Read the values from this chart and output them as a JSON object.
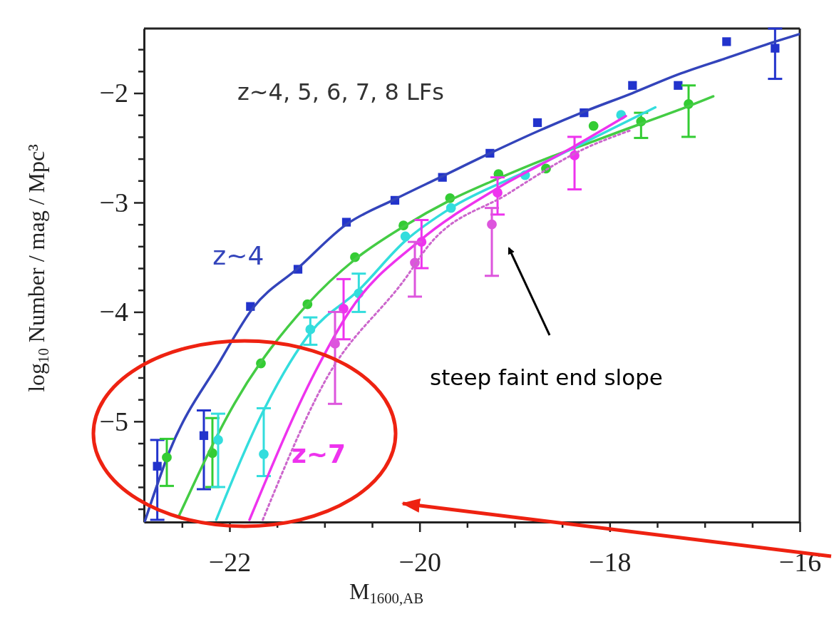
{
  "chart_data": {
    "type": "scatter",
    "xlabel": "M$_{1600,AB}$",
    "ylabel": "log$_{10}$ Number / mag / Mpc³",
    "xlim": [
      -22.9,
      -16
    ],
    "ylim": [
      -5.92,
      -1.41
    ],
    "xticks": [
      {
        "value": -22.5,
        "label": null
      },
      -22,
      {
        "value": -21.5,
        "label": null
      },
      {
        "value": -21,
        "label": null
      },
      {
        "value": -20.5,
        "label": null
      },
      -20,
      {
        "value": -19.5,
        "label": null
      },
      {
        "value": -19,
        "label": null
      },
      {
        "value": -18.5,
        "label": null
      },
      -18,
      {
        "value": -17.5,
        "label": null
      },
      {
        "value": -17,
        "label": null
      },
      {
        "value": -16.5,
        "label": null
      },
      -16
    ],
    "yticks": [
      {
        "value": -5.8,
        "label": null
      },
      {
        "value": -5.6,
        "label": null
      },
      {
        "value": -5.4,
        "label": null
      },
      {
        "value": -5.2,
        "label": null
      },
      -5,
      {
        "value": -4.8,
        "label": null
      },
      {
        "value": -4.6,
        "label": null
      },
      {
        "value": -4.4,
        "label": null
      },
      {
        "value": -4.2,
        "label": null
      },
      -4,
      {
        "value": -3.8,
        "label": null
      },
      {
        "value": -3.6,
        "label": null
      },
      {
        "value": -3.4,
        "label": null
      },
      {
        "value": -3.2,
        "label": null
      },
      -3,
      {
        "value": -2.8,
        "label": null
      },
      {
        "value": -2.6,
        "label": null
      },
      {
        "value": -2.4,
        "label": null
      },
      {
        "value": -2.2,
        "label": null
      },
      -2,
      {
        "value": -1.8,
        "label": null
      },
      {
        "value": -1.6,
        "label": null
      }
    ],
    "annotations": [
      "z~4, 5, 6, 7, 8 LFs",
      "steep faint end slope"
    ],
    "series": [
      {
        "type": "scatter",
        "color": "#2233cc",
        "marker": "square",
        "x": [
          -22.76,
          -22.27,
          -21.78,
          -21.28,
          -20.77,
          -20.26,
          -19.76,
          -19.26,
          -18.76,
          -18.27,
          -17.76,
          -17.28,
          -16.77,
          -16.26
        ],
        "values": [
          -5.41,
          -5.13,
          -3.95,
          -3.61,
          -3.18,
          -2.98,
          -2.77,
          -2.55,
          -2.27,
          -2.18,
          -1.93,
          -1.93,
          -1.53,
          -1.59
        ],
        "errors": [
          [
            -5.9,
            -5.17
          ],
          [
            -5.62,
            -4.9
          ],
          null,
          null,
          null,
          null,
          null,
          null,
          null,
          null,
          null,
          null,
          null,
          [
            -1.87,
            -1.41
          ]
        ]
      },
      {
        "type": "line",
        "name": "z~4",
        "color": "#3344bb",
        "line_style": "solid",
        "x": [
          -22.89,
          -22.63,
          -22.1,
          -21.75,
          -21.28,
          -20.77,
          -20.26,
          -19.76,
          -19.26,
          -18.76,
          -18.27,
          -17.76,
          -17.28,
          -16.77,
          -16.26,
          -16
        ],
        "values": [
          -5.91,
          -5.27,
          -4.45,
          -3.96,
          -3.6,
          -3.2,
          -2.97,
          -2.76,
          -2.55,
          -2.35,
          -2.17,
          -2.0,
          -1.83,
          -1.68,
          -1.53,
          -1.46
        ]
      },
      {
        "type": "scatter",
        "color": "#33cc33",
        "marker": "circle",
        "x": [
          -22.66,
          -22.18,
          -21.67,
          -21.18,
          -20.68,
          -20.17,
          -19.68,
          -19.17,
          -18.67,
          -18.17,
          -17.67,
          -17.17
        ],
        "values": [
          -5.33,
          -5.29,
          -4.47,
          -3.93,
          -3.5,
          -3.21,
          -2.96,
          -2.74,
          -2.69,
          -2.3,
          -2.26,
          -2.1
        ],
        "errors": [
          [
            -5.59,
            -5.16
          ],
          [
            -5.6,
            -4.97
          ],
          null,
          null,
          null,
          null,
          null,
          null,
          null,
          null,
          [
            -2.41,
            -2.18
          ],
          [
            -2.4,
            -1.93
          ]
        ]
      },
      {
        "type": "line",
        "color": "#44cc44",
        "line_style": "solid",
        "x": [
          -22.53,
          -21.95,
          -21.18,
          -20.68,
          -20.17,
          -19.68,
          -19.17,
          -18.67,
          -18.17,
          -17.67,
          -17.17,
          -16.91
        ],
        "values": [
          -5.86,
          -4.84,
          -3.93,
          -3.52,
          -3.22,
          -2.98,
          -2.78,
          -2.6,
          -2.44,
          -2.28,
          -2.12,
          -2.03
        ]
      },
      {
        "type": "scatter",
        "color": "#33dddd",
        "marker": "circle",
        "x": [
          -22.12,
          -21.64,
          -21.15,
          -20.64,
          -20.15,
          -19.67,
          -18.89,
          -17.88
        ],
        "values": [
          -5.17,
          -5.3,
          -4.16,
          -3.83,
          -3.31,
          -3.05,
          -2.75,
          -2.2
        ],
        "errors": [
          [
            -5.6,
            -4.93
          ],
          [
            -5.5,
            -4.88
          ],
          [
            -4.3,
            -4.05
          ],
          [
            -4.0,
            -3.65
          ],
          null,
          null,
          null,
          null
        ]
      },
      {
        "type": "line",
        "color": "#33dddd",
        "line_style": "solid",
        "x": [
          -22.14,
          -21.63,
          -21.15,
          -20.64,
          -20.15,
          -19.67,
          -18.89,
          -17.52
        ],
        "values": [
          -5.9,
          -4.88,
          -4.19,
          -3.8,
          -3.35,
          -3.05,
          -2.72,
          -2.13
        ]
      },
      {
        "type": "scatter",
        "color": "#ee33ee",
        "marker": "circle",
        "x": [
          -20.8,
          -19.98,
          -19.18,
          -18.37
        ],
        "values": [
          -3.97,
          -3.36,
          -2.91,
          -2.57
        ],
        "errors": [
          [
            -4.25,
            -3.7
          ],
          [
            -3.6,
            -3.16
          ],
          [
            -3.11,
            -2.77
          ],
          [
            -2.88,
            -2.4
          ]
        ]
      },
      {
        "type": "line",
        "name": "z~7",
        "color": "#ee33ee",
        "line_style": "solid",
        "x": [
          -21.79,
          -21.1,
          -20.75,
          -20.0,
          -19.2,
          -18.4,
          -17.83
        ],
        "values": [
          -5.9,
          -4.55,
          -4.01,
          -3.35,
          -2.88,
          -2.5,
          -2.21
        ]
      },
      {
        "type": "scatter",
        "color": "#dd55dd",
        "marker": "circle",
        "x": [
          -20.89,
          -20.05,
          -19.24
        ],
        "values": [
          -4.29,
          -3.55,
          -3.2
        ],
        "errors": [
          [
            -4.84,
            -4.0
          ],
          [
            -3.86,
            -3.36
          ],
          [
            -3.67,
            -3.05
          ]
        ]
      },
      {
        "type": "line",
        "color": "#cc66cc",
        "line_style": "dotted",
        "x": [
          -21.65,
          -21.0,
          -20.13,
          -19.93,
          -19.07,
          -18.27,
          -17.78
        ],
        "values": [
          -5.9,
          -4.64,
          -3.67,
          -3.42,
          -2.92,
          -2.51,
          -2.34
        ]
      }
    ]
  }
}
